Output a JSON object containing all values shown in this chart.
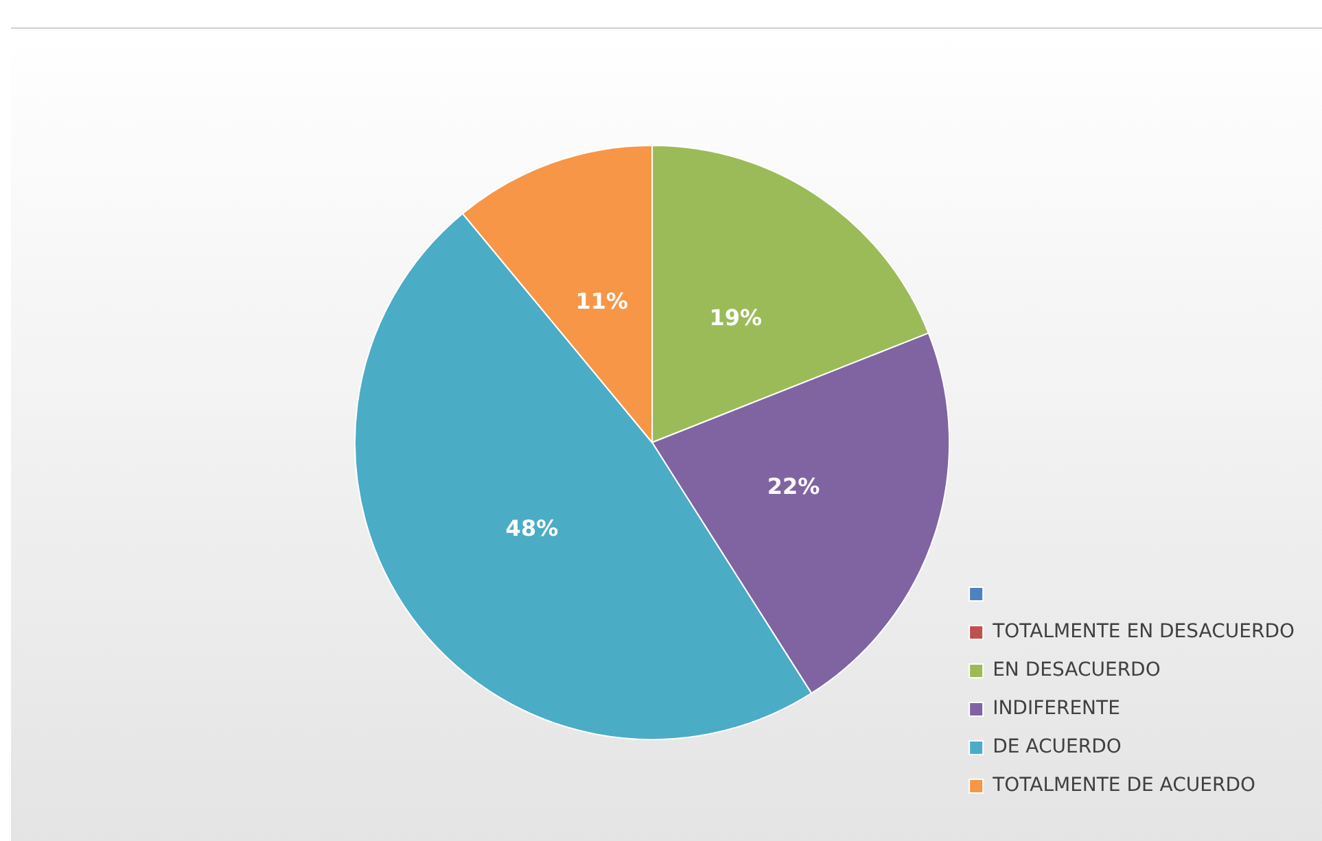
{
  "chart_data": {
    "type": "pie",
    "categories": [
      null,
      "TOTALMENTE EN DESACUERDO",
      "EN DESACUERDO",
      "INDIFERENTE",
      "DE ACUERDO",
      "TOTALMENTE DE ACUERDO"
    ],
    "values": [
      0,
      0,
      19,
      22,
      48,
      11
    ],
    "colors": [
      "#4f81bd",
      "#c0504d",
      "#9bbb59",
      "#8064a2",
      "#4bacc6",
      "#f79646"
    ],
    "value_labels": [
      null,
      null,
      "19%",
      "22%",
      "48%",
      "11%"
    ],
    "legend": "bottom right"
  }
}
